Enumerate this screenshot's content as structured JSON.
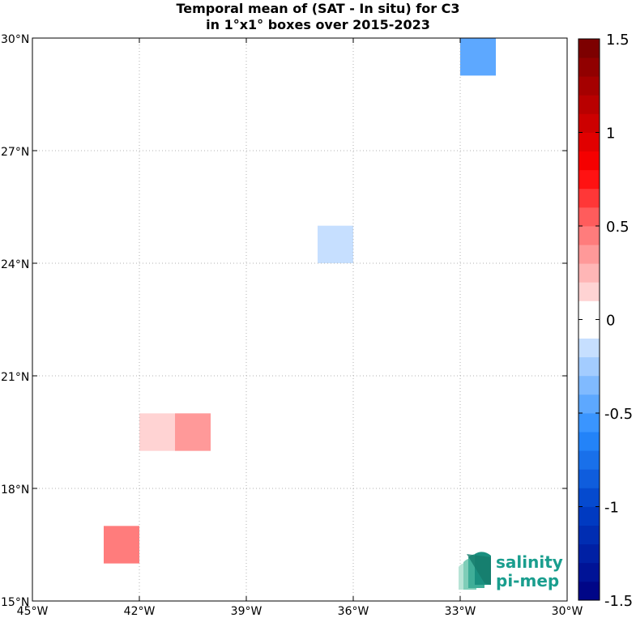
{
  "title": {
    "line1": "Temporal mean of (SAT - In situ) for C3",
    "line2": "in 1°x1° boxes over 2015-2023"
  },
  "map": {
    "lon_range": [
      -45,
      -30
    ],
    "lat_range": [
      15,
      30
    ],
    "lon_ticks": [
      {
        "value": -45,
        "label": "45°W"
      },
      {
        "value": -42,
        "label": "42°W"
      },
      {
        "value": -39,
        "label": "39°W"
      },
      {
        "value": -36,
        "label": "36°W"
      },
      {
        "value": -33,
        "label": "33°W"
      },
      {
        "value": -30,
        "label": "30°W"
      }
    ],
    "lat_ticks": [
      {
        "value": 15,
        "label": "15°N"
      },
      {
        "value": 18,
        "label": "18°N"
      },
      {
        "value": 21,
        "label": "21°N"
      },
      {
        "value": 24,
        "label": "24°N"
      },
      {
        "value": 27,
        "label": "27°N"
      },
      {
        "value": 30,
        "label": "30°N"
      }
    ],
    "grid": "dotted"
  },
  "chart_data": {
    "type": "heatmap",
    "cell_size_deg": 1,
    "cells": [
      {
        "lon": -33,
        "lat": 29,
        "value": -0.45
      },
      {
        "lon": -37,
        "lat": 24,
        "value": -0.15
      },
      {
        "lon": -42,
        "lat": 19,
        "value": 0.15
      },
      {
        "lon": -41,
        "lat": 19,
        "value": 0.3
      },
      {
        "lon": -43,
        "lat": 16,
        "value": 0.45
      }
    ],
    "colorbar": {
      "range": [
        -1.5,
        1.5
      ],
      "levels": 30,
      "ticks": [
        {
          "value": 1.5,
          "label": "1.5"
        },
        {
          "value": 1,
          "label": "1"
        },
        {
          "value": 0.5,
          "label": "0.5"
        },
        {
          "value": 0,
          "label": "0"
        },
        {
          "value": -0.5,
          "label": "-0.5"
        },
        {
          "value": -1,
          "label": "-1"
        },
        {
          "value": -1.5,
          "label": "-1.5"
        }
      ]
    }
  },
  "logo": {
    "line1": "salinity",
    "line2": "pi-mep",
    "color": "#1a9e8e"
  }
}
